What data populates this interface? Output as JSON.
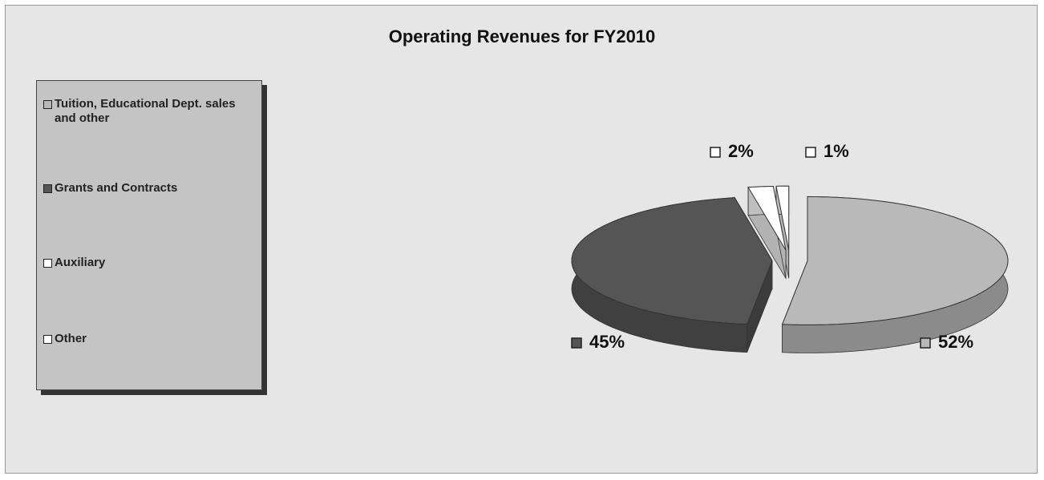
{
  "chart_data": {
    "type": "pie",
    "title": "Operating Revenues for FY2010",
    "categories": [
      "Tuition, Educational Dept. sales and other",
      "Grants and Contracts",
      "Auxiliary",
      "Other"
    ],
    "values": [
      52,
      45,
      2,
      1
    ],
    "value_labels": [
      "52%",
      "45%",
      "2%",
      "1%"
    ],
    "colors": [
      "#b9b9b9",
      "#555555",
      "#ffffff",
      "#ffffff"
    ],
    "legend": "left"
  }
}
